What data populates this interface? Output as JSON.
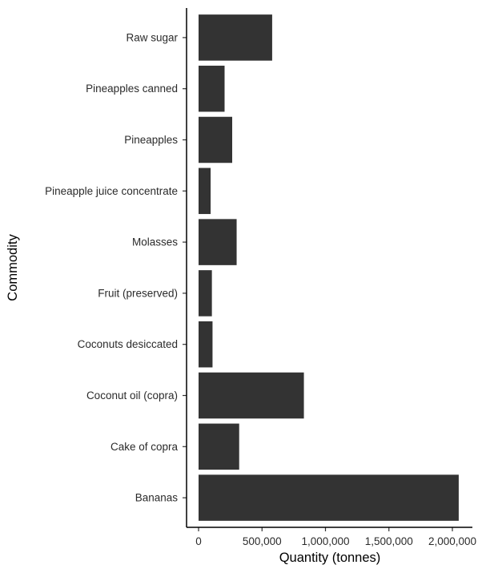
{
  "chart_data": {
    "type": "bar",
    "orientation": "horizontal",
    "categories": [
      "Raw sugar",
      "Pineapples canned",
      "Pineapples",
      "Pineapple juice concentrate",
      "Molasses",
      "Fruit (preserved)",
      "Coconuts desiccated",
      "Coconut oil (copra)",
      "Cake of copra",
      "Bananas"
    ],
    "values": [
      580000,
      205000,
      265000,
      95000,
      300000,
      105000,
      110000,
      830000,
      320000,
      2050000
    ],
    "xlabel": "Quantity (tonnes)",
    "ylabel": "Commodity",
    "xlim": [
      0,
      2100000
    ],
    "x_ticks": [
      0,
      500000,
      1000000,
      1500000,
      2000000
    ],
    "x_tick_labels": [
      "0",
      "500,000",
      "1,000,000",
      "1,500,000",
      "2,000,000"
    ],
    "bar_color": "#333333",
    "grid": false,
    "legend": "none"
  }
}
